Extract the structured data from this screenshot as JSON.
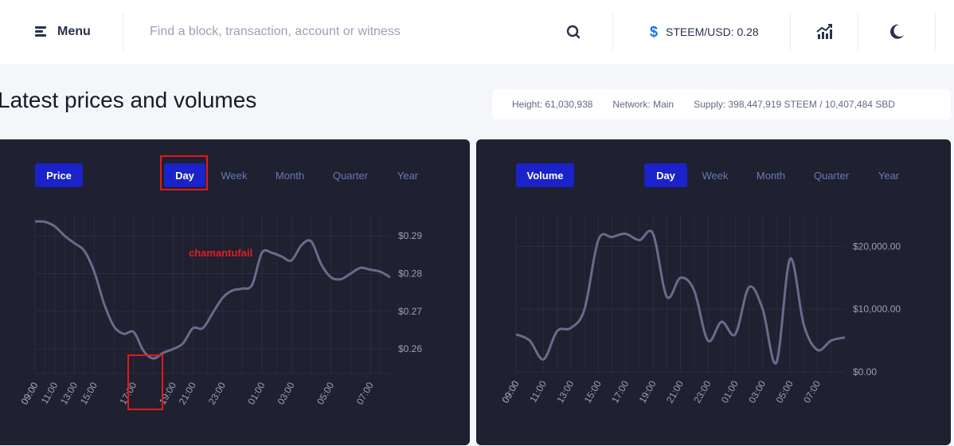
{
  "header": {
    "menu_label": "Menu",
    "search_placeholder": "Find a block, transaction, account or witness",
    "price_label": "STEEM/USD: 0.28",
    "icons": {
      "menu": "menu-icon",
      "search": "search-icon",
      "dollar": "dollar-icon",
      "chart": "chart-icon",
      "theme": "moon-icon"
    }
  },
  "page": {
    "title": "Latest prices and volumes",
    "height": "Height: 61,030,938",
    "network": "Network: Main",
    "supply": "Supply: 398,447,919 STEEM / 10,407,484 SBD"
  },
  "ranges": [
    "Day",
    "Week",
    "Month",
    "Quarter",
    "Year"
  ],
  "price_panel": {
    "pill": "Price",
    "active_range": "Day",
    "watermark": "chamantufail"
  },
  "volume_panel": {
    "pill": "Volume",
    "active_range": "Day"
  },
  "colors": {
    "accent": "#1a22c9",
    "panel_bg": "#1f2030",
    "line": "#6b6a8c",
    "annotation": "#e01b1b"
  },
  "chart_data": [
    {
      "type": "line",
      "series": [
        {
          "values": [
            0.2938,
            0.2937,
            0.2925,
            0.29,
            0.288,
            0.286,
            0.2805,
            0.272,
            0.266,
            0.264,
            0.2645,
            0.2595,
            0.2575,
            0.259,
            0.26,
            0.2615,
            0.2655,
            0.2655,
            0.2695,
            0.2735,
            0.2755,
            0.276,
            0.277,
            0.2855,
            0.2855,
            0.2845,
            0.2835,
            0.2875,
            0.2885,
            0.2825,
            0.279,
            0.2785,
            0.28,
            0.2815,
            0.281,
            0.2805,
            0.279
          ]
        }
      ],
      "x": [
        "09:00",
        "10:00",
        "11:00",
        "12:00",
        "13:00",
        "14:00",
        "15:00",
        "15:30",
        "16:00",
        "16:30",
        "17:00",
        "17:30",
        "18:00",
        "18:30",
        "19:00",
        "20:00",
        "21:00",
        "21:30",
        "22:00",
        "23:00",
        "23:30",
        "00:00",
        "00:30",
        "01:00",
        "01:30",
        "02:00",
        "03:00",
        "03:30",
        "04:00",
        "04:30",
        "05:00",
        "05:30",
        "06:00",
        "06:30",
        "07:00",
        "08:00",
        "09:00"
      ],
      "x_ticks": [
        "09:00",
        "11:00",
        "13:00",
        "15:00",
        "17:00",
        "19:00",
        "21:00",
        "23:00",
        "01:00",
        "03:00",
        "05:00",
        "07:00",
        "09:00"
      ],
      "y_ticks": [
        "$0.29",
        "$0.28",
        "$0.27",
        "$0.26"
      ],
      "ylim": [
        0.2535,
        0.2955
      ]
    },
    {
      "type": "line",
      "series": [
        {
          "values": [
            6000,
            5000,
            2000,
            6500,
            7000,
            10000,
            21000,
            21500,
            22000,
            21000,
            22000,
            12000,
            15000,
            13000,
            5000,
            8000,
            6000,
            13500,
            10000,
            1500,
            18000,
            7500,
            3500,
            5000,
            5500
          ]
        }
      ],
      "x": [
        "09:00",
        "10:00",
        "11:00",
        "12:00",
        "13:00",
        "14:00",
        "15:00",
        "16:00",
        "17:00",
        "18:00",
        "19:00",
        "20:00",
        "21:00",
        "22:00",
        "23:00",
        "00:00",
        "01:00",
        "02:00",
        "03:00",
        "04:00",
        "05:00",
        "06:00",
        "07:00",
        "08:00",
        "09:00"
      ],
      "x_ticks": [
        "09:00",
        "11:00",
        "13:00",
        "15:00",
        "17:00",
        "19:00",
        "21:00",
        "23:00",
        "01:00",
        "03:00",
        "05:00",
        "07:00",
        "09:00"
      ],
      "y_ticks": [
        "$20,000.00",
        "$10,000.00",
        "$0.00"
      ],
      "ylim": [
        0,
        25000
      ]
    }
  ]
}
